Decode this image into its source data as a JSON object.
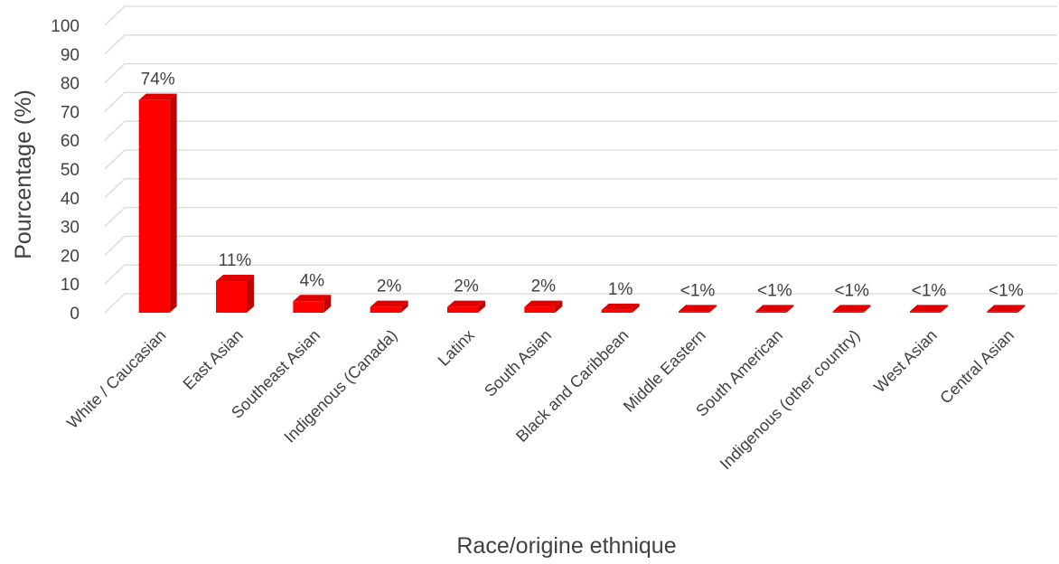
{
  "chart_data": {
    "type": "bar",
    "title": "",
    "xlabel": "Race/origine ethnique",
    "ylabel": "Pourcentage (%)",
    "ylim": [
      0,
      100
    ],
    "yticks": [
      0,
      10,
      20,
      30,
      40,
      50,
      60,
      70,
      80,
      90,
      100
    ],
    "grid": true,
    "three_d": true,
    "bar_color": "#ff0000",
    "bar_side_color": "#c00000",
    "bar_top_color": "#e00000",
    "categories": [
      "White / Caucasian",
      "East Asian",
      "Southeast Asian",
      "Indigenous (Canada)",
      "Latinx",
      "South Asian",
      "Black and Caribbean",
      "Middle Eastern",
      "South American",
      "Indigenous (other country)",
      "West Asian",
      "Central Asian"
    ],
    "values": [
      74,
      11,
      4,
      2,
      2,
      2,
      1,
      0.5,
      0.5,
      0.5,
      0.5,
      0.5
    ],
    "data_labels": [
      "74%",
      "11%",
      "4%",
      "2%",
      "2%",
      "2%",
      "1%",
      "<1%",
      "<1%",
      "<1%",
      "<1%",
      "<1%"
    ]
  }
}
